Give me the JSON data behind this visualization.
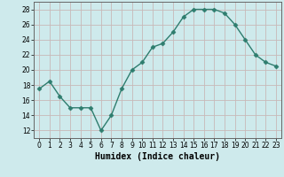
{
  "x": [
    0,
    1,
    2,
    3,
    4,
    5,
    6,
    7,
    8,
    9,
    10,
    11,
    12,
    13,
    14,
    15,
    16,
    17,
    18,
    19,
    20,
    21,
    22,
    23
  ],
  "y": [
    17.5,
    18.5,
    16.5,
    15,
    15,
    15,
    12,
    14,
    17.5,
    20,
    21,
    23,
    23.5,
    25,
    27,
    28,
    28,
    28,
    27.5,
    26,
    24,
    22,
    21,
    20.5
  ],
  "line_color": "#2e7d6e",
  "marker": "D",
  "marker_size": 2.5,
  "background_color": "#ceeaec",
  "grid_color": "#c8b8b8",
  "xlabel": "Humidex (Indice chaleur)",
  "ylabel": "",
  "title": "",
  "xlim": [
    -0.5,
    23.5
  ],
  "ylim": [
    11,
    29
  ],
  "yticks": [
    12,
    14,
    16,
    18,
    20,
    22,
    24,
    26,
    28
  ],
  "xticks": [
    0,
    1,
    2,
    3,
    4,
    5,
    6,
    7,
    8,
    9,
    10,
    11,
    12,
    13,
    14,
    15,
    16,
    17,
    18,
    19,
    20,
    21,
    22,
    23
  ],
  "xlabel_fontsize": 7,
  "tick_fontsize": 5.5,
  "line_width": 1.0,
  "spine_color": "#666666"
}
